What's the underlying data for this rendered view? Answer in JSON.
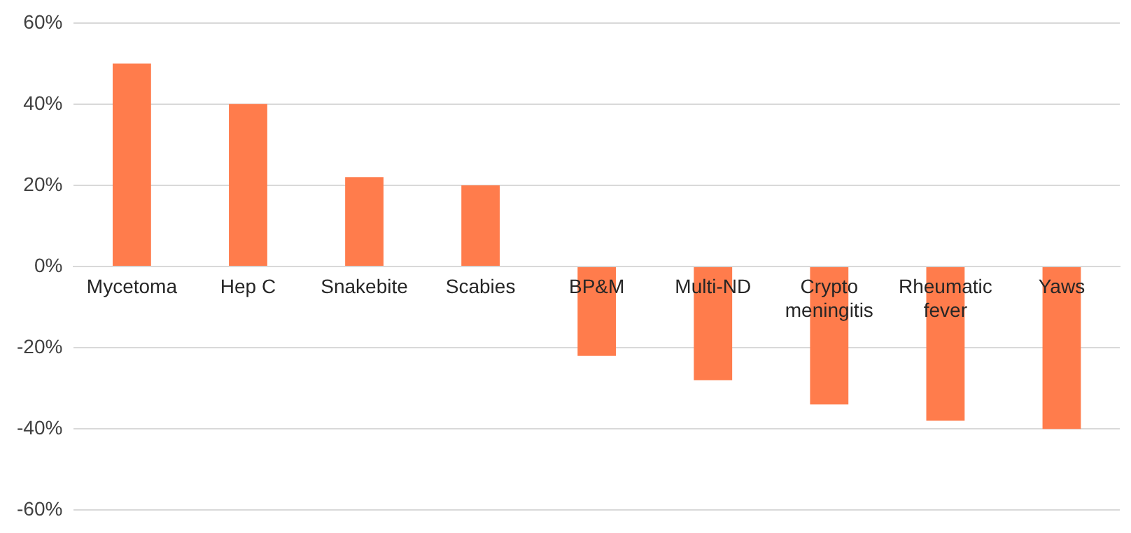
{
  "chart_data": {
    "type": "bar",
    "categories": [
      "Mycetoma",
      "Hep C",
      "Snakebite",
      "Scabies",
      "BP&M",
      "Multi-ND",
      "Crypto\nmeningitis",
      "Rheumatic\nfever",
      "Yaws"
    ],
    "values": [
      50,
      40,
      22,
      20,
      -22,
      -28,
      -34,
      -38,
      -40
    ],
    "color": "#ff7c4c",
    "ylim": [
      -60,
      60
    ],
    "yticks": [
      {
        "value": -60,
        "label": "-60%"
      },
      {
        "value": -40,
        "label": "-40%"
      },
      {
        "value": -20,
        "label": "-20%"
      },
      {
        "value": 0,
        "label": "0%"
      },
      {
        "value": 20,
        "label": "20%"
      },
      {
        "value": 40,
        "label": "40%"
      },
      {
        "value": 60,
        "label": "60%"
      }
    ],
    "grid": "y",
    "legend": false
  }
}
